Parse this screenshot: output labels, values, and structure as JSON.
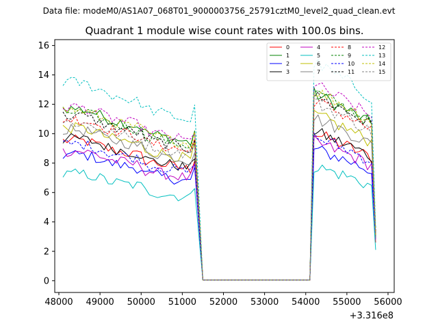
{
  "chart_data": {
    "type": "line",
    "suptitle": "Data file: modeM0/AS1A07_068T01_9000003756_25791cztM0_level2_quad_clean.evt",
    "title": "Quadrant 1 module wise count rates with 100.0s bins.",
    "xlabel": "",
    "ylabel": "",
    "x_offset_label": "+3.316e8",
    "xlim": [
      47900,
      56150
    ],
    "ylim": [
      -0.8,
      16.4
    ],
    "x_ticks": [
      48000,
      49000,
      50000,
      51000,
      52000,
      53000,
      54000,
      55000,
      56000
    ],
    "y_ticks": [
      0,
      2,
      4,
      6,
      8,
      10,
      12,
      14,
      16
    ],
    "legend_position": "top-right",
    "series": [
      {
        "name": "0",
        "color": "#ff0000",
        "dash": "solid",
        "base": 7.8,
        "end": 8.5
      },
      {
        "name": "1",
        "color": "#008000",
        "dash": "solid",
        "base": 9.6,
        "end": 10.8
      },
      {
        "name": "2",
        "color": "#0000ff",
        "dash": "solid",
        "base": 7.0,
        "end": 7.6
      },
      {
        "name": "3",
        "color": "#000000",
        "dash": "solid",
        "base": 7.9,
        "end": 8.6
      },
      {
        "name": "4",
        "color": "#bf00bf",
        "dash": "solid",
        "base": 7.2,
        "end": 8.0
      },
      {
        "name": "5",
        "color": "#00bfbf",
        "dash": "solid",
        "base": 5.9,
        "end": 6.6
      },
      {
        "name": "6",
        "color": "#bfbf00",
        "dash": "solid",
        "base": 8.5,
        "end": 9.6
      },
      {
        "name": "7",
        "color": "#808080",
        "dash": "solid",
        "base": 8.4,
        "end": 9.4
      },
      {
        "name": "8",
        "color": "#ff0000",
        "dash": "dashed",
        "base": 9.0,
        "end": 10.4
      },
      {
        "name": "9",
        "color": "#008000",
        "dash": "dashed",
        "base": 9.4,
        "end": 10.9
      },
      {
        "name": "10",
        "color": "#0000ff",
        "dash": "dashed",
        "base": 7.6,
        "end": 8.3
      },
      {
        "name": "11",
        "color": "#000000",
        "dash": "dashed",
        "base": 9.2,
        "end": 10.7
      },
      {
        "name": "12",
        "color": "#bf00bf",
        "dash": "dashed",
        "base": 9.7,
        "end": 11.3
      },
      {
        "name": "13",
        "color": "#00bfbf",
        "dash": "dashed",
        "base": 11.1,
        "end": 12.6
      },
      {
        "name": "14",
        "color": "#bfbf00",
        "dash": "dashed",
        "base": 9.5,
        "end": 11.0
      },
      {
        "name": "15",
        "color": "#808080",
        "dash": "dashed",
        "base": 8.8,
        "end": 10.3
      }
    ],
    "segment_1": {
      "start": 48100,
      "stop": 51300,
      "step": 100,
      "drop_to": 51500,
      "drop_value": 0.05
    },
    "gap": {
      "from": 51500,
      "to": 54100,
      "value": 0.05
    },
    "segment_2": {
      "start": 54200,
      "stop": 55600,
      "step": 100,
      "final_x": 55700,
      "final_values": [
        2.6,
        3.0,
        2.9,
        3.1,
        2.8,
        2.1,
        3.0,
        2.9,
        3.2,
        3.4,
        2.9,
        3.3,
        3.3,
        3.6,
        3.1,
        3.0
      ]
    }
  }
}
